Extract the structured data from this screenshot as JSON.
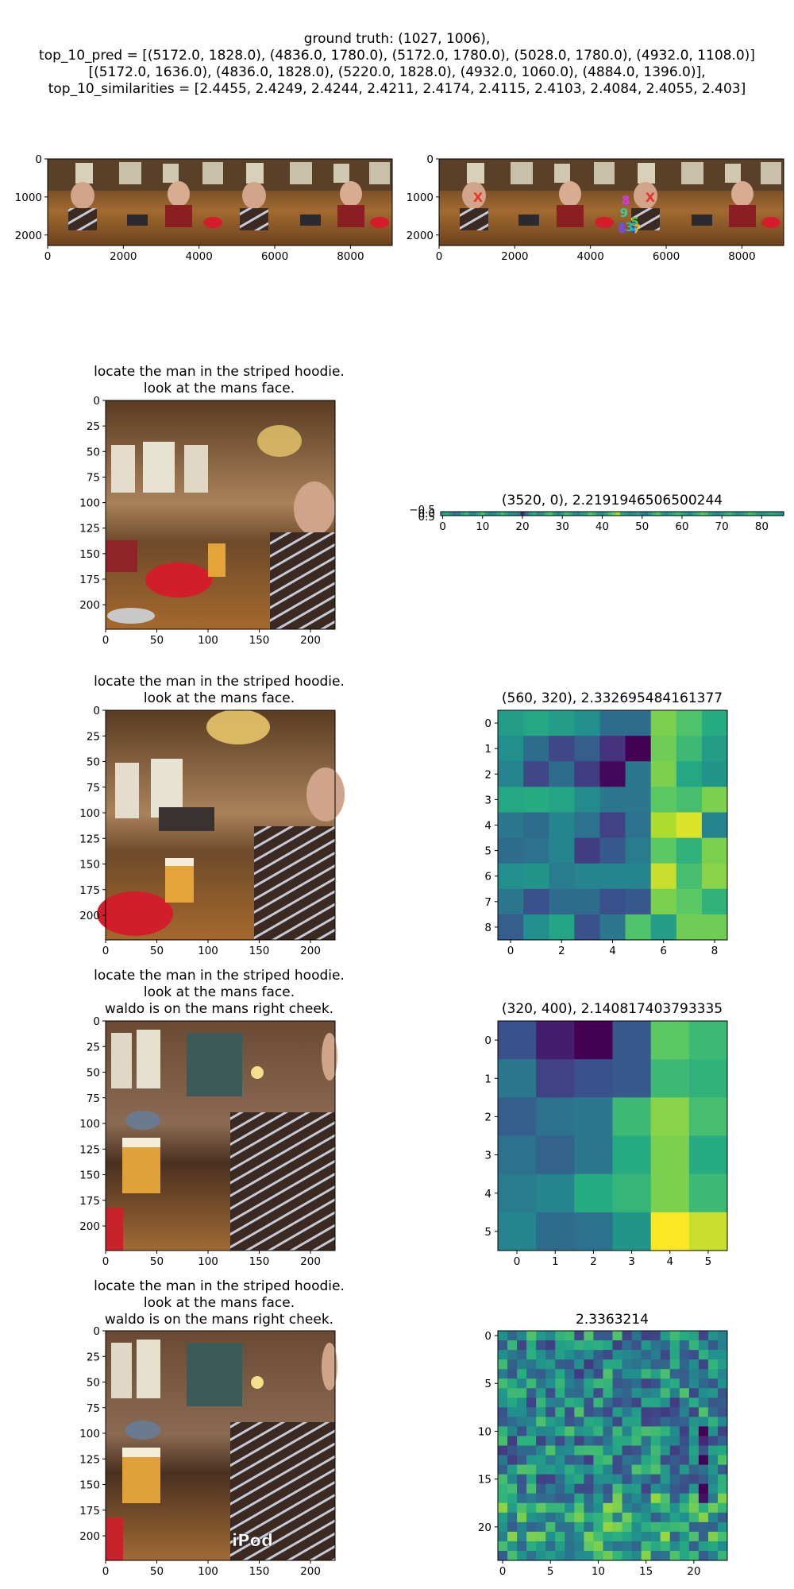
{
  "figure": {
    "title_lines": [
      "ground truth: (1027, 1006),",
      "top_10_pred = [(5172.0, 1828.0), (4836.0, 1780.0), (5172.0, 1780.0), (5028.0, 1780.0), (4932.0, 1108.0)]",
      "[(5172.0, 1636.0), (4836.0, 1828.0), (5220.0, 1828.0), (4932.0, 1060.0), (4884.0, 1396.0)],",
      "top_10_similarities = [2.4455, 2.4249, 2.4244, 2.4211, 2.4174, 2.4115, 2.4103, 2.4084, 2.4055, 2.403]"
    ]
  },
  "chart_data": [
    {
      "type": "image",
      "panel": "panorama",
      "xticks": [
        0,
        2000,
        4000,
        6000,
        8000
      ],
      "yticks": [
        0,
        1000,
        2000
      ],
      "xlim": [
        0,
        9104
      ],
      "ylim": [
        2276,
        0
      ]
    },
    {
      "type": "image",
      "panel": "panorama-with-predictions",
      "xticks": [
        0,
        2000,
        4000,
        6000,
        8000
      ],
      "yticks": [
        0,
        1000,
        2000
      ],
      "xlim": [
        0,
        9104
      ],
      "ylim": [
        2276,
        0
      ],
      "ground_truth": {
        "x": 1027,
        "y": 1006,
        "marker": "X",
        "color": "#e8342a"
      },
      "ground_truth_repeat": {
        "x": 5579,
        "y": 1006
      },
      "prediction_labels": [
        "0",
        "1",
        "2",
        "3",
        "4",
        "5",
        "6",
        "7",
        "8",
        "9"
      ],
      "prediction_points": [
        {
          "x": 5172,
          "y": 1828
        },
        {
          "x": 4836,
          "y": 1780
        },
        {
          "x": 5172,
          "y": 1780
        },
        {
          "x": 5028,
          "y": 1780
        },
        {
          "x": 4932,
          "y": 1108
        },
        {
          "x": 5172,
          "y": 1636
        },
        {
          "x": 4836,
          "y": 1828
        },
        {
          "x": 5220,
          "y": 1828
        },
        {
          "x": 4932,
          "y": 1060
        },
        {
          "x": 4884,
          "y": 1396
        }
      ],
      "prediction_colors": [
        "#3f2fd0",
        "#2b6fe0",
        "#20a0d8",
        "#20c0b0",
        "#b040d8",
        "#60c040",
        "#9040e0",
        "#f0b020",
        "#d040c0",
        "#30d0a0"
      ]
    },
    {
      "type": "image",
      "panel": "crop-1",
      "title_lines": [
        "locate the man in the striped hoodie.",
        "look at the mans face."
      ],
      "xticks": [
        0,
        50,
        100,
        150,
        200
      ],
      "yticks": [
        0,
        25,
        50,
        75,
        100,
        125,
        150,
        175,
        200
      ],
      "xlim": [
        0,
        224
      ],
      "ylim": [
        224,
        0
      ]
    },
    {
      "type": "heatmap",
      "panel": "similarity-1",
      "title": "(3520, 0), 2.2191946506500244",
      "rows": 1,
      "cols": 86,
      "xticks": [
        0,
        10,
        20,
        30,
        40,
        50,
        60,
        70,
        80
      ],
      "yticks": [
        "−0.5",
        "0.5"
      ],
      "yticks_overlap": "0.0",
      "values": [
        [
          0.55,
          0.6,
          0.52,
          0.4,
          0.45,
          0.58,
          0.66,
          0.5,
          0.48,
          0.62,
          0.7,
          0.55,
          0.47,
          0.52,
          0.6,
          0.68,
          0.58,
          0.49,
          0.5,
          0.45,
          0.1,
          0.38,
          0.55,
          0.62,
          0.48,
          0.52,
          0.66,
          0.72,
          0.58,
          0.46,
          0.58,
          0.7,
          0.64,
          0.52,
          0.48,
          0.56,
          0.62,
          0.74,
          0.66,
          0.55,
          0.5,
          0.6,
          0.7,
          0.78,
          0.85,
          0.62,
          0.56,
          0.48,
          0.52,
          0.6,
          0.45,
          0.4,
          0.55,
          0.66,
          0.72,
          0.6,
          0.52,
          0.58,
          0.64,
          0.7,
          0.62,
          0.55,
          0.5,
          0.58,
          0.66,
          0.74,
          0.7,
          0.6,
          0.52,
          0.48,
          0.56,
          0.64,
          0.68,
          0.58,
          0.5,
          0.54,
          0.62,
          0.7,
          0.66,
          0.58,
          0.52,
          0.56,
          0.62,
          0.6,
          0.55,
          0.5
        ]
      ]
    },
    {
      "type": "image",
      "panel": "crop-2",
      "title_lines": [
        "locate the man in the striped hoodie.",
        "look at the mans face."
      ],
      "xticks": [
        0,
        50,
        100,
        150,
        200
      ],
      "yticks": [
        0,
        25,
        50,
        75,
        100,
        125,
        150,
        175,
        200
      ],
      "xlim": [
        0,
        224
      ],
      "ylim": [
        224,
        0
      ]
    },
    {
      "type": "heatmap",
      "panel": "similarity-2",
      "title": "(560, 320), 2.332695484161377",
      "rows": 9,
      "cols": 9,
      "xticks": [
        0,
        2,
        4,
        6,
        8
      ],
      "yticks": [
        0,
        1,
        2,
        3,
        4,
        5,
        6,
        7,
        8
      ],
      "values": [
        [
          0.55,
          0.6,
          0.55,
          0.5,
          0.35,
          0.35,
          0.8,
          0.72,
          0.62
        ],
        [
          0.5,
          0.35,
          0.22,
          0.3,
          0.15,
          0.0,
          0.78,
          0.68,
          0.55
        ],
        [
          0.45,
          0.22,
          0.35,
          0.18,
          0.02,
          0.4,
          0.8,
          0.6,
          0.52
        ],
        [
          0.6,
          0.62,
          0.58,
          0.48,
          0.4,
          0.4,
          0.75,
          0.7,
          0.8
        ],
        [
          0.4,
          0.35,
          0.45,
          0.38,
          0.2,
          0.38,
          0.88,
          0.95,
          0.45
        ],
        [
          0.35,
          0.38,
          0.45,
          0.18,
          0.28,
          0.42,
          0.75,
          0.65,
          0.8
        ],
        [
          0.5,
          0.52,
          0.42,
          0.45,
          0.45,
          0.45,
          0.92,
          0.7,
          0.82
        ],
        [
          0.4,
          0.25,
          0.35,
          0.35,
          0.25,
          0.28,
          0.8,
          0.75,
          0.65
        ],
        [
          0.3,
          0.5,
          0.58,
          0.25,
          0.4,
          0.72,
          0.55,
          0.78,
          0.78
        ]
      ]
    },
    {
      "type": "image",
      "panel": "crop-3",
      "title_lines": [
        "locate the man in the striped hoodie.",
        "look at the mans face.",
        "waldo is on the mans right cheek."
      ],
      "xticks": [
        0,
        50,
        100,
        150,
        200
      ],
      "yticks": [
        0,
        25,
        50,
        75,
        100,
        125,
        150,
        175,
        200
      ],
      "xlim": [
        0,
        224
      ],
      "ylim": [
        224,
        0
      ]
    },
    {
      "type": "heatmap",
      "panel": "similarity-3",
      "title": "(320, 400), 2.140817403793335",
      "rows": 6,
      "cols": 6,
      "xticks": [
        0,
        1,
        2,
        3,
        4,
        5
      ],
      "yticks": [
        0,
        1,
        2,
        3,
        4,
        5
      ],
      "values": [
        [
          0.25,
          0.08,
          0.0,
          0.28,
          0.75,
          0.68
        ],
        [
          0.4,
          0.2,
          0.25,
          0.28,
          0.68,
          0.65
        ],
        [
          0.3,
          0.38,
          0.4,
          0.68,
          0.82,
          0.7
        ],
        [
          0.38,
          0.32,
          0.4,
          0.62,
          0.8,
          0.62
        ],
        [
          0.42,
          0.45,
          0.62,
          0.66,
          0.8,
          0.68
        ],
        [
          0.45,
          0.35,
          0.38,
          0.52,
          1.0,
          0.92
        ]
      ]
    },
    {
      "type": "image",
      "panel": "crop-4",
      "title_lines": [
        "locate the man in the striped hoodie.",
        "look at the mans face.",
        "waldo is on the mans right cheek."
      ],
      "overlay_text": "iPod",
      "xticks": [
        0,
        50,
        100,
        150,
        200
      ],
      "yticks": [
        0,
        25,
        50,
        75,
        100,
        125,
        150,
        175,
        200
      ],
      "xlim": [
        0,
        224
      ],
      "ylim": [
        224,
        0
      ]
    },
    {
      "type": "heatmap",
      "panel": "similarity-4",
      "title": "2.3363214",
      "rows": 24,
      "cols": 24,
      "xticks": [
        0,
        5,
        10,
        15,
        20
      ],
      "yticks": [
        0,
        5,
        10,
        15,
        20
      ],
      "generator": {
        "seed": 7,
        "note": ""
      }
    }
  ]
}
